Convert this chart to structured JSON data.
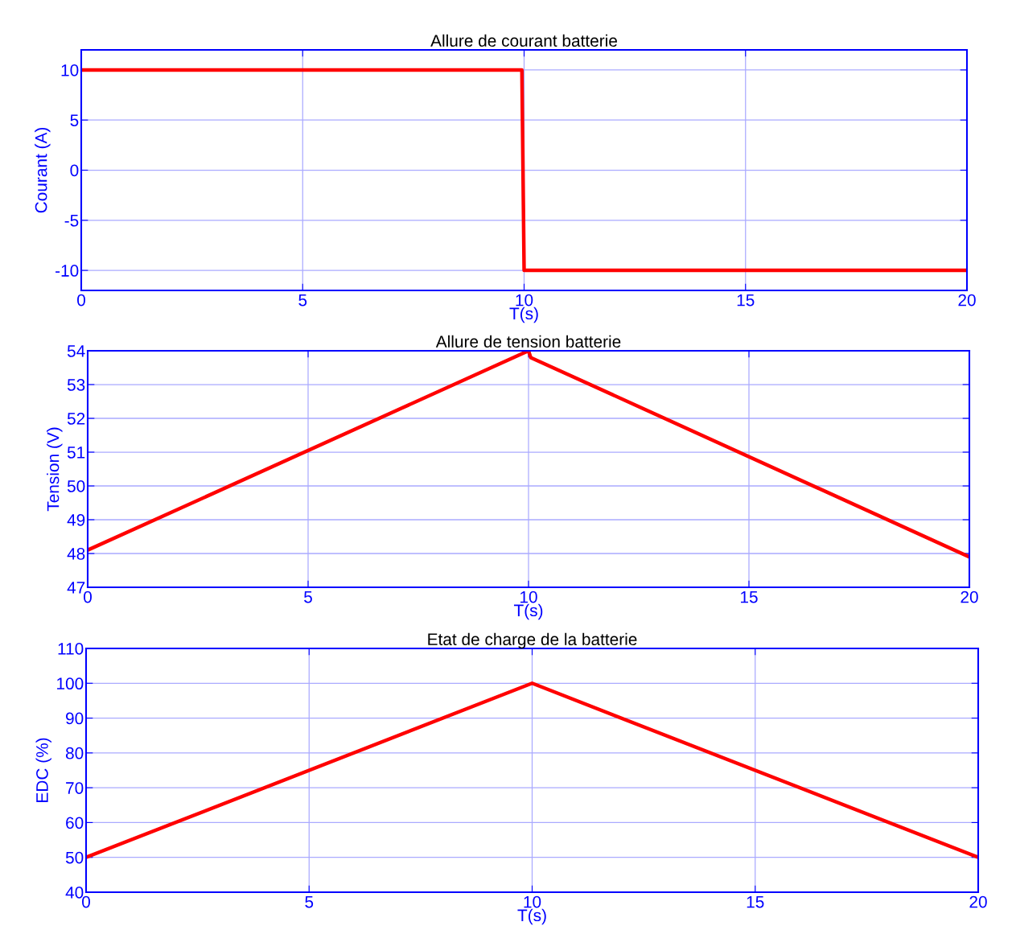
{
  "chart_data": [
    {
      "type": "line",
      "title": "Allure de courant batterie",
      "xlabel": "T(s)",
      "ylabel": "Courant (A)",
      "xlim": [
        0,
        20
      ],
      "xticks": [
        0,
        5,
        10,
        15,
        20
      ],
      "ylim": [
        -12,
        12
      ],
      "yticks": [
        -10,
        -5,
        0,
        5,
        10
      ],
      "grid": true,
      "line_style": "solid",
      "marker": "none",
      "series": [
        {
          "color": "#ff0000",
          "x": [
            0,
            9.95,
            10,
            20
          ],
          "values": [
            10,
            10,
            -10,
            -10
          ]
        }
      ]
    },
    {
      "type": "line",
      "title": "Allure de tension batterie",
      "xlabel": "T(s)",
      "ylabel": "Tension (V)",
      "xlim": [
        0,
        20
      ],
      "xticks": [
        0,
        5,
        10,
        15,
        20
      ],
      "ylim": [
        47,
        54
      ],
      "yticks": [
        47,
        48,
        49,
        50,
        51,
        52,
        53,
        54
      ],
      "grid": true,
      "line_style": "solid",
      "marker": "none",
      "series": [
        {
          "color": "#ff0000",
          "x": [
            0,
            10,
            10.05,
            20
          ],
          "values": [
            48.1,
            54.0,
            53.8,
            47.9
          ]
        }
      ]
    },
    {
      "type": "line",
      "title": "Etat de charge de la batterie",
      "xlabel": "T(s)",
      "ylabel": "EDC (%)",
      "xlim": [
        0,
        20
      ],
      "xticks": [
        0,
        5,
        10,
        15,
        20
      ],
      "ylim": [
        40,
        110
      ],
      "yticks": [
        40,
        50,
        60,
        70,
        80,
        90,
        100,
        110
      ],
      "grid": true,
      "line_style": "solid",
      "marker": "none",
      "series": [
        {
          "color": "#ff0000",
          "x": [
            0,
            10,
            20
          ],
          "values": [
            50,
            100,
            50
          ]
        }
      ]
    }
  ]
}
